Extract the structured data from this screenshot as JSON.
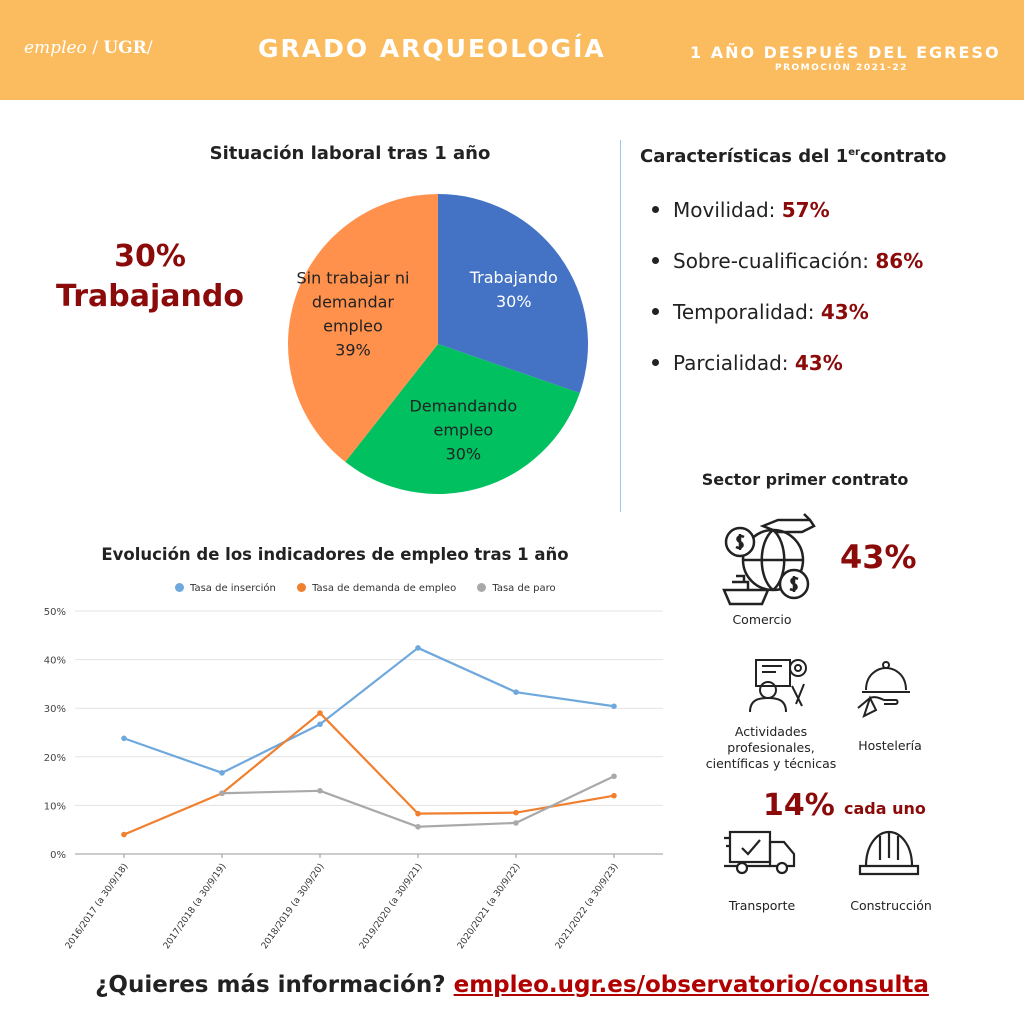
{
  "header": {
    "logo_brand": "empleo",
    "logo_sep1": "/",
    "logo_org": "UGR",
    "logo_sep2": "/",
    "title": "GRADO ARQUEOLOGÍA",
    "subtitle": "1 AÑO DESPUÉS DEL EGRESO",
    "promotion": "PROMOCIÓN 2021-22",
    "color": "#fbbc5f"
  },
  "situacion": {
    "title": "Situación laboral tras 1 año",
    "highlight_pct": "30%",
    "highlight_label": "Trabajando"
  },
  "caracteristicas": {
    "title_prefix": "Características del 1",
    "title_sup": "er",
    "title_suffix": "contrato",
    "items": [
      {
        "label": "Movilidad: ",
        "value": "57%"
      },
      {
        "label": "Sobre-cualificación: ",
        "value": "86%"
      },
      {
        "label": "Temporalidad: ",
        "value": "43%"
      },
      {
        "label": "Parcialidad: ",
        "value": "43%"
      }
    ]
  },
  "sector": {
    "title": "Sector primer contrato",
    "comercio": {
      "label": "Comercio",
      "pct": "43%",
      "icon": "globe-trade-icon"
    },
    "actividades": {
      "label_lines": [
        "Actividades",
        "profesionales,",
        "científicas y técnicas"
      ],
      "icon": "professional-worker-icon"
    },
    "hosteleria": {
      "label": "Hostelería",
      "icon": "food-cloche-icon"
    },
    "transporte": {
      "label": "Transporte",
      "icon": "delivery-truck-icon"
    },
    "construccion": {
      "label": "Construcción",
      "icon": "hard-hat-icon"
    },
    "shared_pct": "14%",
    "shared_suffix": "cada uno"
  },
  "footer": {
    "question": "¿Quieres más información? ",
    "link": "empleo.ugr.es/observatorio/consulta"
  },
  "accent_color": "#8b0a0a",
  "chart_data": [
    {
      "type": "pie",
      "title": "Situación laboral tras 1 año",
      "slices": [
        {
          "name": "Trabajando",
          "value": 30,
          "label": "30%",
          "color": "#4472c4"
        },
        {
          "name": "Demandando empleo",
          "value": 30,
          "label": "30%",
          "color": "#00c060"
        },
        {
          "name": "Sin trabajar ni demandar empleo",
          "value": 39,
          "label": "39%",
          "color": "#ff914d"
        }
      ]
    },
    {
      "type": "line",
      "title": "Evolución de los indicadores de empleo tras 1 año",
      "categories": [
        "2016/2017 (a 30/9/18)",
        "2017/2018 (a 30/9/19)",
        "2018/2019 (a 30/9/20)",
        "2019/2020 (a 30/9/21)",
        "2020/2021 (a 30/9/22)",
        "2021/2022 (a 30/9/23)"
      ],
      "series": [
        {
          "name": "Tasa de inserción",
          "color": "#6fa8dc",
          "values": [
            23.8,
            16.7,
            26.7,
            42.4,
            33.3,
            30.4
          ]
        },
        {
          "name": "Tasa de demanda de empleo",
          "color": "#f07f2e",
          "values": [
            4.0,
            12.5,
            29.0,
            8.3,
            8.5,
            12.0
          ]
        },
        {
          "name": "Tasa de paro",
          "color": "#a9a9a9",
          "values": [
            null,
            12.5,
            13.0,
            5.6,
            6.4,
            16.0
          ]
        }
      ],
      "ylim": [
        0,
        50
      ],
      "yticks": [
        "0%",
        "10%",
        "20%",
        "30%",
        "40%",
        "50%"
      ],
      "grid": true,
      "legend": "top"
    }
  ]
}
